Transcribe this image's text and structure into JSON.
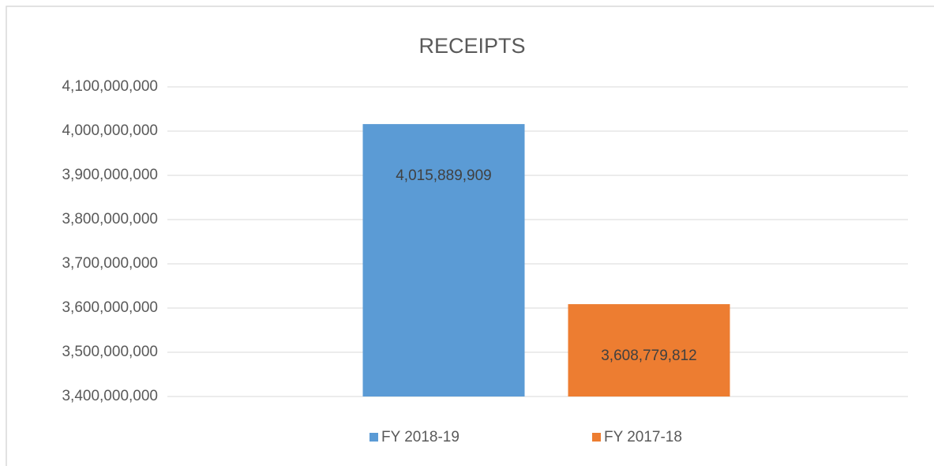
{
  "chart_data": {
    "type": "bar",
    "title": "RECEIPTS",
    "categories": [
      null
    ],
    "series": [
      {
        "name": "FY 2018-19",
        "color": "#5b9bd5",
        "values": [
          4015889909
        ],
        "value_labels": [
          "4,015,889,909"
        ]
      },
      {
        "name": "FY 2017-18",
        "color": "#ed7d31",
        "values": [
          3608779812
        ],
        "value_labels": [
          "3,608,779,812"
        ]
      }
    ],
    "ylim": [
      3400000000,
      4100000000
    ],
    "yticks": [
      {
        "value": 3400000000,
        "label": "3,400,000,000"
      },
      {
        "value": 3500000000,
        "label": "3,500,000,000"
      },
      {
        "value": 3600000000,
        "label": "3,600,000,000"
      },
      {
        "value": 3700000000,
        "label": "3,700,000,000"
      },
      {
        "value": 3800000000,
        "label": "3,800,000,000"
      },
      {
        "value": 3900000000,
        "label": "3,900,000,000"
      },
      {
        "value": 4000000000,
        "label": "4,000,000,000"
      },
      {
        "value": 4100000000,
        "label": "4,100,000,000"
      }
    ],
    "grid": true,
    "legend": "bottom"
  }
}
